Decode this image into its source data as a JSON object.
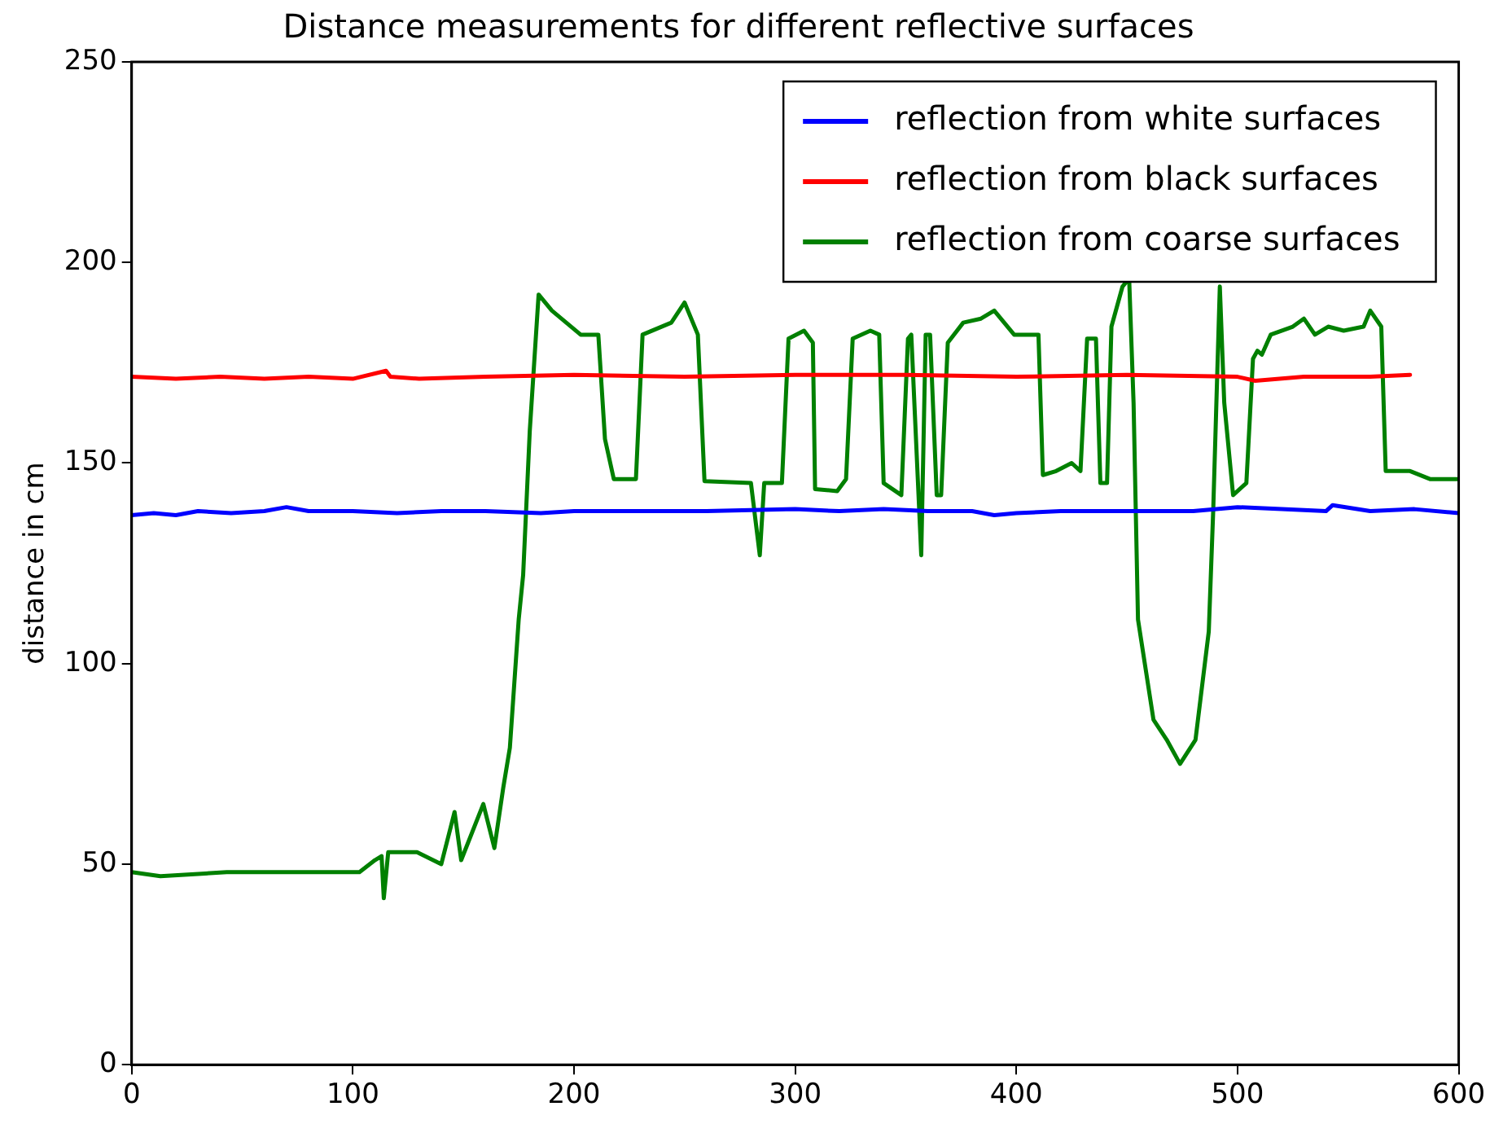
{
  "chart_data": {
    "type": "line",
    "title": "Distance measurements for different reflective surfaces",
    "ylabel": "distance in cm",
    "xlim": [
      0,
      600
    ],
    "ylim": [
      0,
      250
    ],
    "xticks": [
      0,
      100,
      200,
      300,
      400,
      500,
      600
    ],
    "yticks": [
      0,
      50,
      100,
      150,
      200,
      250
    ],
    "grid": false,
    "legend": "top right",
    "marker": "none",
    "line_style": "solid",
    "series": [
      {
        "name": "reflection from white surfaces",
        "color": "#0000ff",
        "x": [
          0,
          10,
          20,
          30,
          45,
          60,
          70,
          80,
          100,
          120,
          140,
          160,
          185,
          200,
          230,
          260,
          300,
          320,
          340,
          360,
          380,
          390,
          400,
          420,
          450,
          480,
          500,
          520,
          540,
          543,
          560,
          580,
          600
        ],
        "values": [
          137,
          137.5,
          137,
          138,
          137.5,
          138,
          139,
          138,
          138,
          137.5,
          138,
          138,
          137.5,
          138,
          138,
          138,
          138.5,
          138,
          138.5,
          138,
          138,
          137,
          137.5,
          138,
          138,
          138,
          139,
          138.5,
          138,
          139.5,
          138,
          138.5,
          137.5
        ]
      },
      {
        "name": "reflection from black surfaces",
        "color": "#ff0000",
        "x": [
          0,
          20,
          40,
          60,
          80,
          100,
          115,
          117,
          130,
          160,
          200,
          250,
          300,
          350,
          400,
          450,
          500,
          508,
          530,
          560,
          578
        ],
        "values": [
          171.5,
          171,
          171.5,
          171,
          171.5,
          171,
          173,
          171.5,
          171,
          171.5,
          172,
          171.5,
          172,
          172,
          171.5,
          172,
          171.5,
          170.5,
          171.5,
          171.5,
          172
        ]
      },
      {
        "name": "reflection from coarse surfaces",
        "color": "#008000",
        "x": [
          0,
          13,
          43,
          80,
          103,
          110,
          113,
          114,
          116,
          129,
          140,
          146,
          149,
          159,
          164,
          168,
          171,
          175,
          177,
          180,
          184,
          190,
          203,
          211,
          214,
          218,
          228,
          231,
          244,
          250,
          256,
          259,
          280,
          284,
          286,
          294,
          297,
          304,
          308,
          309,
          319,
          323,
          326,
          334,
          338,
          340,
          348,
          351,
          352.5,
          357,
          359,
          361,
          364,
          366,
          369,
          376,
          384,
          390,
          399,
          410,
          412,
          418,
          425,
          429,
          432,
          436,
          438,
          441,
          443,
          448,
          451,
          453,
          455,
          462,
          468,
          474,
          481,
          487,
          489,
          492,
          494,
          498,
          504,
          507,
          509,
          511,
          515,
          525,
          530,
          535,
          541,
          548,
          557,
          560,
          565,
          567,
          578,
          587,
          598,
          600
        ],
        "values": [
          48,
          47,
          48,
          48,
          48,
          51,
          52,
          41.5,
          53,
          53,
          50,
          63,
          51,
          65,
          54,
          69,
          79,
          111,
          122,
          158,
          192,
          188,
          182,
          182,
          156,
          146,
          146,
          182,
          185,
          190,
          182,
          145.5,
          145,
          127,
          145,
          145,
          181,
          183,
          180,
          143.5,
          143,
          146,
          181,
          183,
          182,
          145,
          142,
          181,
          182,
          127,
          182,
          182,
          142,
          142,
          180,
          185,
          186,
          188,
          182,
          182,
          147,
          148,
          150,
          148,
          181,
          181,
          145,
          145,
          184,
          194,
          196,
          165,
          111,
          86,
          81,
          75,
          81,
          108,
          138,
          194,
          165,
          142,
          145,
          176,
          178,
          177,
          182,
          184,
          186,
          182,
          184,
          183,
          184,
          188,
          184,
          148,
          148,
          146,
          146,
          146
        ]
      }
    ]
  }
}
